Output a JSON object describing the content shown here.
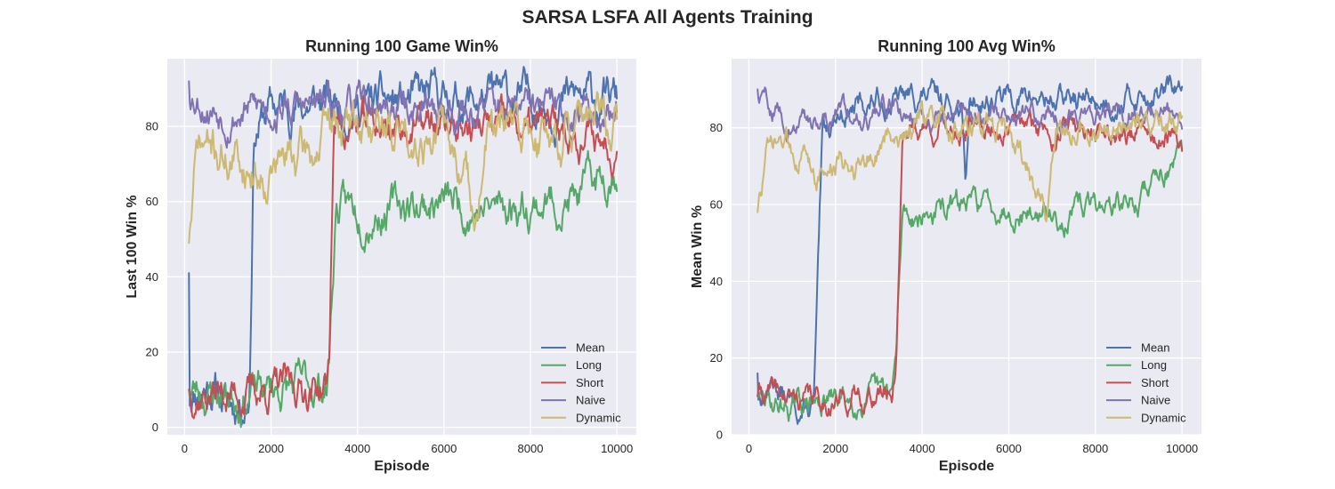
{
  "figure": {
    "suptitle": "SARSA LSFA All Agents Training"
  },
  "chart_data": [
    {
      "type": "line",
      "title": "Running 100 Game Win%",
      "xlabel": "Episode",
      "ylabel": "Last 100 Win %",
      "xlim": [
        -400,
        10450
      ],
      "ylim": [
        -2,
        98
      ],
      "xticks": [
        0,
        2000,
        4000,
        6000,
        8000,
        10000
      ],
      "yticks": [
        0,
        20,
        40,
        60,
        80
      ],
      "grid": true,
      "legend_position": "lower-right",
      "series": [
        {
          "name": "Mean",
          "color": "#4c72b0",
          "x_start": 100,
          "x_end": 10000,
          "start": 41,
          "noise": 3.4,
          "seed": 11,
          "segments": [
            [
              100,
              8
            ],
            [
              150,
              10
            ],
            [
              600,
              12
            ],
            [
              1000,
              6
            ],
            [
              1400,
              8
            ],
            [
              1500,
              10
            ],
            [
              1600,
              80
            ],
            [
              2000,
              85
            ],
            [
              3000,
              86
            ],
            [
              4500,
              86
            ],
            [
              5000,
              86
            ],
            [
              6000,
              87
            ],
            [
              8000,
              87
            ],
            [
              10000,
              87
            ]
          ]
        },
        {
          "name": "Long",
          "color": "#55a868",
          "x_start": 100,
          "x_end": 10000,
          "start": 10,
          "noise": 3.2,
          "seed": 23,
          "segments": [
            [
              100,
              10
            ],
            [
              1000,
              9
            ],
            [
              2000,
              10
            ],
            [
              3300,
              11
            ],
            [
              3350,
              20
            ],
            [
              3500,
              58
            ],
            [
              4000,
              58
            ],
            [
              5000,
              59
            ],
            [
              6000,
              60
            ],
            [
              7000,
              58
            ],
            [
              8000,
              60
            ],
            [
              9000,
              60
            ],
            [
              10000,
              70
            ]
          ]
        },
        {
          "name": "Short",
          "color": "#c44e52",
          "x_start": 100,
          "x_end": 10000,
          "start": 10,
          "noise": 3.0,
          "seed": 37,
          "segments": [
            [
              100,
              10
            ],
            [
              1000,
              9
            ],
            [
              2000,
              10
            ],
            [
              3300,
              11
            ],
            [
              3350,
              20
            ],
            [
              3450,
              80
            ],
            [
              4000,
              80
            ],
            [
              6000,
              80
            ],
            [
              8000,
              79
            ],
            [
              9000,
              79
            ],
            [
              10000,
              75
            ]
          ]
        },
        {
          "name": "Naive",
          "color": "#8172b2",
          "x_start": 100,
          "x_end": 10000,
          "start": 92,
          "noise": 2.8,
          "seed": 53,
          "segments": [
            [
              100,
              90
            ],
            [
              600,
              86
            ],
            [
              1000,
              84
            ],
            [
              2000,
              85
            ],
            [
              4000,
              85
            ],
            [
              6000,
              85
            ],
            [
              8000,
              84
            ],
            [
              10000,
              84
            ]
          ]
        },
        {
          "name": "Dynamic",
          "color": "#ccb974",
          "x_start": 100,
          "x_end": 10000,
          "start": 49,
          "noise": 3.6,
          "seed": 71,
          "segments": [
            [
              100,
              50
            ],
            [
              300,
              74
            ],
            [
              600,
              74
            ],
            [
              1000,
              72
            ],
            [
              1800,
              68
            ],
            [
              2000,
              70
            ],
            [
              3000,
              73
            ],
            [
              3400,
              80
            ],
            [
              4000,
              80
            ],
            [
              6000,
              78
            ],
            [
              6800,
              58
            ],
            [
              7000,
              78
            ],
            [
              8000,
              78
            ],
            [
              10000,
              80
            ]
          ]
        }
      ]
    },
    {
      "type": "line",
      "title": "Running 100 Avg Win%",
      "xlabel": "Episode",
      "ylabel": "Mean Win %",
      "xlim": [
        -400,
        10450
      ],
      "ylim": [
        0,
        98
      ],
      "xticks": [
        0,
        2000,
        4000,
        6000,
        8000,
        10000
      ],
      "yticks": [
        0,
        20,
        40,
        60,
        80
      ],
      "grid": true,
      "legend_position": "lower-right",
      "series": [
        {
          "name": "Mean",
          "color": "#4c72b0",
          "x_start": 200,
          "x_end": 10000,
          "start": 16,
          "noise": 2.0,
          "seed": 13,
          "segments": [
            [
              200,
              10
            ],
            [
              600,
              14
            ],
            [
              1000,
              7
            ],
            [
              1400,
              6
            ],
            [
              1500,
              8
            ],
            [
              1700,
              76
            ],
            [
              2000,
              84
            ],
            [
              3000,
              87
            ],
            [
              4000,
              88
            ],
            [
              4900,
              86
            ],
            [
              5000,
              65
            ],
            [
              5100,
              87
            ],
            [
              6000,
              88
            ],
            [
              8000,
              87
            ],
            [
              10000,
              90
            ]
          ]
        },
        {
          "name": "Long",
          "color": "#55a868",
          "x_start": 200,
          "x_end": 10000,
          "start": 10,
          "noise": 2.0,
          "seed": 29,
          "segments": [
            [
              200,
              9
            ],
            [
              1000,
              7
            ],
            [
              2000,
              9
            ],
            [
              3300,
              10
            ],
            [
              3400,
              20
            ],
            [
              3550,
              58
            ],
            [
              4000,
              57
            ],
            [
              5000,
              60
            ],
            [
              6000,
              60
            ],
            [
              7000,
              56
            ],
            [
              8000,
              60
            ],
            [
              9000,
              60
            ],
            [
              9500,
              70
            ],
            [
              10000,
              70
            ]
          ]
        },
        {
          "name": "Short",
          "color": "#c44e52",
          "x_start": 200,
          "x_end": 10000,
          "start": 10,
          "noise": 2.0,
          "seed": 41,
          "segments": [
            [
              200,
              11
            ],
            [
              1000,
              9
            ],
            [
              2000,
              9
            ],
            [
              3300,
              11
            ],
            [
              3400,
              20
            ],
            [
              3550,
              80
            ],
            [
              4000,
              80
            ],
            [
              6000,
              80
            ],
            [
              8000,
              80
            ],
            [
              9000,
              78
            ],
            [
              10000,
              75
            ]
          ]
        },
        {
          "name": "Naive",
          "color": "#8172b2",
          "x_start": 200,
          "x_end": 10000,
          "start": 90,
          "noise": 1.8,
          "seed": 59,
          "segments": [
            [
              200,
              88
            ],
            [
              600,
              85
            ],
            [
              1000,
              80
            ],
            [
              2000,
              84
            ],
            [
              4000,
              84
            ],
            [
              6000,
              84
            ],
            [
              8000,
              84
            ],
            [
              10000,
              84
            ]
          ]
        },
        {
          "name": "Dynamic",
          "color": "#ccb974",
          "x_start": 200,
          "x_end": 10000,
          "start": 58,
          "noise": 2.2,
          "seed": 73,
          "segments": [
            [
              200,
              58
            ],
            [
              400,
              72
            ],
            [
              800,
              76
            ],
            [
              1200,
              74
            ],
            [
              1600,
              68
            ],
            [
              2000,
              70
            ],
            [
              3000,
              74
            ],
            [
              3500,
              80
            ],
            [
              4000,
              80
            ],
            [
              6000,
              80
            ],
            [
              6900,
              56
            ],
            [
              7100,
              78
            ],
            [
              8000,
              80
            ],
            [
              10000,
              80
            ]
          ]
        }
      ]
    }
  ]
}
